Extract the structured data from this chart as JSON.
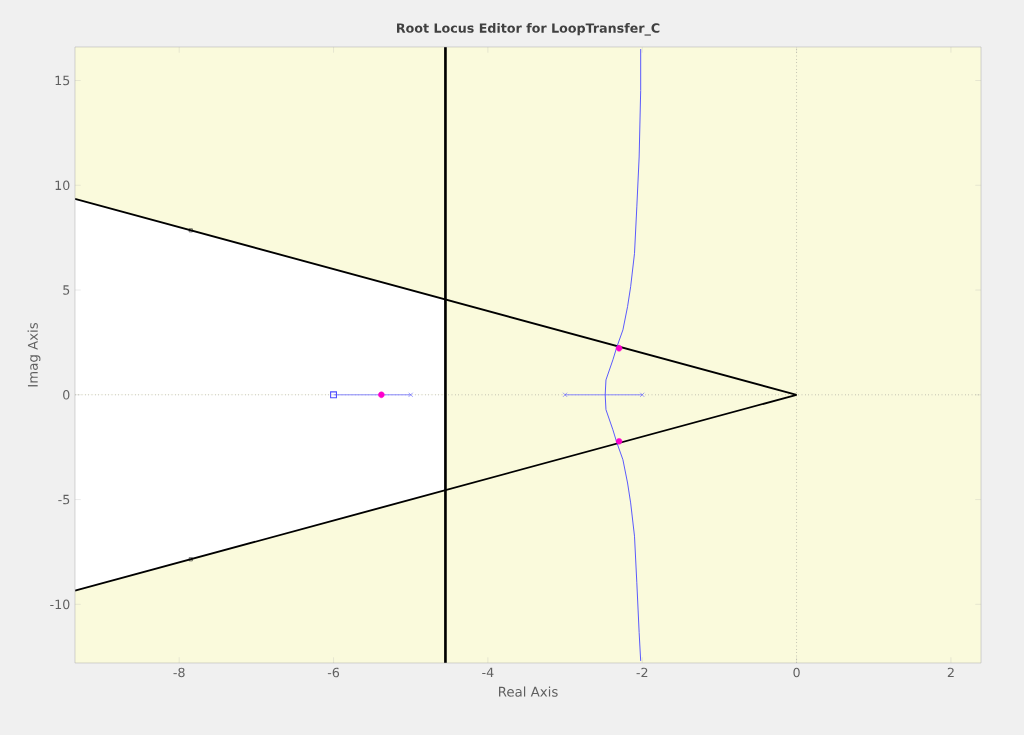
{
  "chart_data": {
    "type": "line",
    "title": "Root Locus Editor for LoopTransfer_C",
    "xlabel": "Real Axis",
    "ylabel": "Imag Axis",
    "xlim": [
      -9.35,
      2.39
    ],
    "ylim": [
      -12.8,
      16.6
    ],
    "xticks": [
      -8,
      -6,
      -4,
      -2,
      0,
      2
    ],
    "yticks": [
      -10,
      -5,
      0,
      5,
      10,
      15
    ],
    "grid": false,
    "marker": "none",
    "line_style": "solid",
    "bands": [
      {
        "axis": "x",
        "from": -9.35,
        "to": 2.39,
        "color": "#fafadc"
      }
    ],
    "ref_lines": [
      {
        "axis": "x",
        "value": 0,
        "color": "#808080",
        "line_style": "dotted"
      },
      {
        "axis": "y",
        "value": 0,
        "color": "#808080",
        "line_style": "dotted"
      },
      {
        "axis": "x",
        "value": -4.55,
        "color": "#000000",
        "line_style": "solid"
      }
    ],
    "series": [
      {
        "type": "area",
        "color": "#ffffff",
        "x": [
          -9.35,
          -4.55
        ],
        "values": [
          9.35,
          4.55
        ]
      },
      {
        "type": "area",
        "color": "#ffffff",
        "x": [
          -9.35,
          -4.55
        ],
        "values": [
          -9.35,
          -4.55
        ]
      },
      {
        "color": "#000000",
        "x": [
          -9.35,
          0
        ],
        "values": [
          9.35,
          0
        ]
      },
      {
        "color": "#000000",
        "x": [
          -9.35,
          0
        ],
        "values": [
          -9.35,
          0
        ]
      },
      {
        "type": "scatter",
        "color": "#000000",
        "marker": "square",
        "x": [
          -7.85,
          -7.85
        ],
        "values": [
          7.85,
          -7.85
        ]
      },
      {
        "type": "line",
        "color": "#8080ff",
        "x": [
          -3,
          -2
        ],
        "values": [
          0,
          0
        ]
      },
      {
        "type": "line",
        "color": "#8080ff",
        "x": [
          -6,
          -5
        ],
        "values": [
          0,
          0
        ]
      },
      {
        "color": "#4d4dff",
        "x": [
          -2.02,
          -2.04,
          -2.07,
          -2.1,
          -2.15,
          -2.19,
          -2.25,
          -2.33,
          -2.38,
          -2.47,
          -2.48,
          -2.47,
          -2.38,
          -2.33,
          -2.25,
          -2.19,
          -2.15,
          -2.1,
          -2.07,
          -2.04,
          -2.02,
          -2.02
        ],
        "values": [
          -12.7,
          -11.35,
          -8.97,
          -6.75,
          -5.16,
          -4.21,
          -3.1,
          -2.27,
          -1.67,
          -0.71,
          0,
          0.71,
          1.67,
          2.27,
          3.1,
          4.21,
          5.16,
          6.75,
          8.97,
          11.35,
          14.52,
          16.5
        ]
      },
      {
        "type": "scatter",
        "color": "#4d4dff",
        "marker": "cross",
        "x": [
          -2,
          -3,
          -5
        ],
        "values": [
          0,
          0,
          0
        ]
      },
      {
        "type": "scatter",
        "color": "#4d4dff",
        "marker": "square",
        "x": [
          -6
        ],
        "values": [
          0
        ]
      },
      {
        "type": "scatter",
        "color": "#ff00cc",
        "marker": "circle",
        "x": [
          -5.38,
          -2.3,
          -2.3
        ],
        "values": [
          0,
          2.22,
          -2.22
        ]
      }
    ]
  }
}
